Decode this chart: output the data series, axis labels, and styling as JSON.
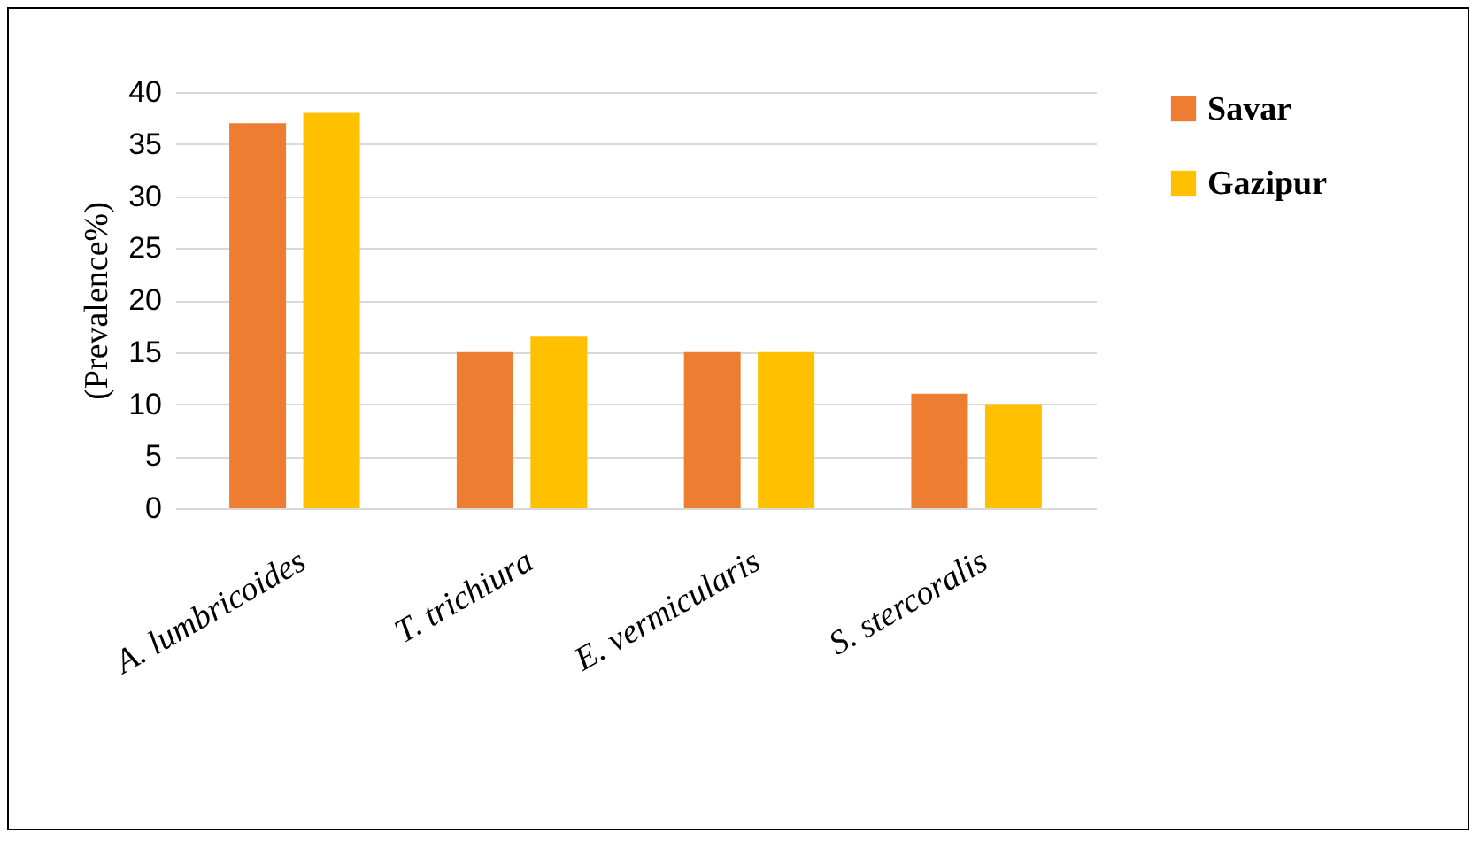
{
  "chart_data": {
    "type": "bar",
    "ylabel": "(Prevalence%)",
    "categories": [
      "A. lumbricoides",
      "T. trichiura",
      "E. vermicularis",
      "S. stercoralis"
    ],
    "series": [
      {
        "name": "Savar",
        "color": "#ed7d31",
        "values": [
          37,
          15,
          15,
          11
        ]
      },
      {
        "name": "Gazipur",
        "color": "#ffc000",
        "values": [
          38,
          16.5,
          15,
          10
        ]
      }
    ],
    "ylim": [
      0,
      40
    ],
    "yticks": [
      0,
      5,
      10,
      15,
      20,
      25,
      30,
      35,
      40
    ],
    "grid": "y",
    "legend": "right"
  }
}
